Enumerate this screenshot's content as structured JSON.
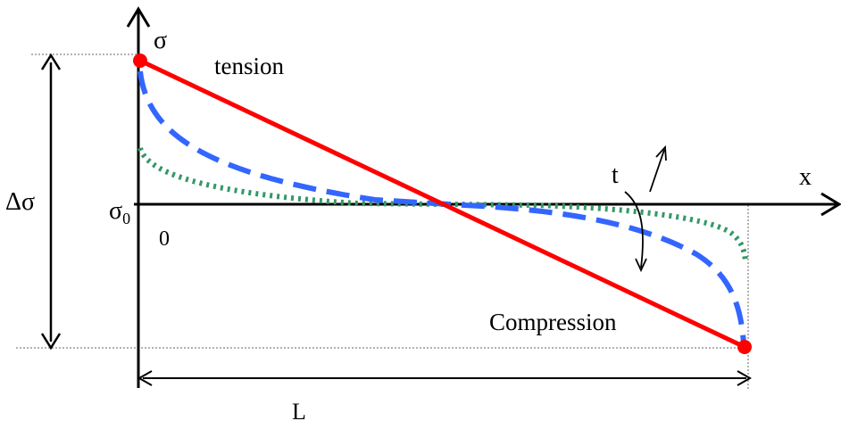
{
  "labels": {
    "sigma_axis": "σ",
    "x_axis": "x",
    "tension": "tension",
    "compression": "Compression",
    "time": "t",
    "delta_sigma": "Δσ",
    "sigma0_base": "σ",
    "sigma0_sub": "0",
    "origin": "0",
    "length": "L"
  },
  "colors": {
    "axes": "#000000",
    "linear_profile": "#ff0000",
    "dashed_profile": "#3366ff",
    "dotted_profile": "#339966",
    "guides": "#666666"
  }
}
